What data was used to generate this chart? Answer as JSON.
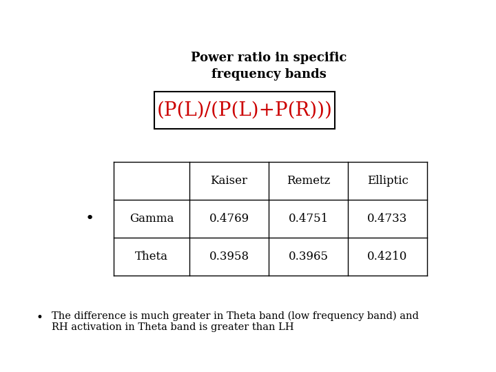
{
  "title": "Power ratio in specific\nfrequency bands",
  "formula": "(P(L)/(P(L)+P(R)))",
  "formula_color": "#cc0000",
  "table_headers": [
    "",
    "Kaiser",
    "Remetz",
    "Elliptic"
  ],
  "table_rows": [
    [
      "Gamma",
      "0.4769",
      "0.4751",
      "0.4733"
    ],
    [
      "Theta",
      "0.3958",
      "0.3965",
      "0.4210"
    ]
  ],
  "bullet_text_line1": "The difference is much greater in Theta band (low frequency band) and",
  "bullet_text_line2": "RH activation in Theta band is greater than LH",
  "bg_color": "#ffffff",
  "text_color": "#000000",
  "title_fontsize": 13,
  "formula_fontsize": 20,
  "table_fontsize": 12,
  "bullet_fontsize": 10.5
}
